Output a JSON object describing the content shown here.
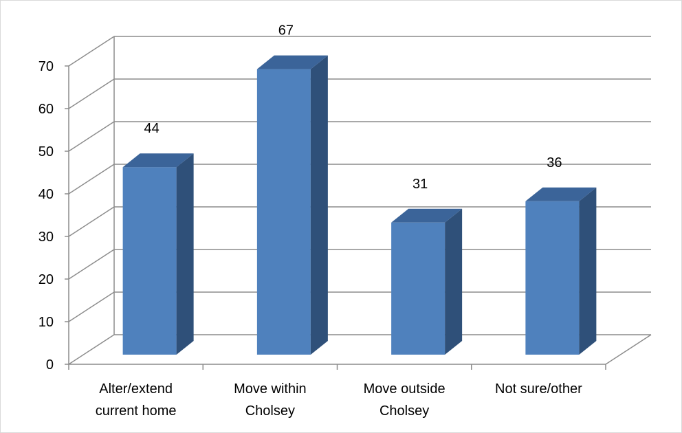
{
  "chart_data": {
    "type": "bar",
    "style": "3d-column",
    "categories": [
      [
        "Alter/extend",
        "current home"
      ],
      [
        "Move within",
        "Cholsey"
      ],
      [
        "Move outside",
        "Cholsey"
      ],
      [
        "Not sure/other"
      ]
    ],
    "values": [
      44,
      67,
      31,
      36
    ],
    "data_labels": [
      "44",
      "67",
      "31",
      "36"
    ],
    "ylim": [
      0,
      70
    ],
    "yticks": [
      "0",
      "10",
      "20",
      "30",
      "40",
      "50",
      "60",
      "70"
    ],
    "grid": true,
    "legend": "none",
    "title": "",
    "xlabel": "",
    "ylabel": "",
    "colors": {
      "bar_front": "#4f81bd",
      "bar_side": "#2f5079",
      "bar_top": "#3b6499",
      "gridline": "#8c8c8c",
      "axis": "#8c8c8c"
    }
  }
}
